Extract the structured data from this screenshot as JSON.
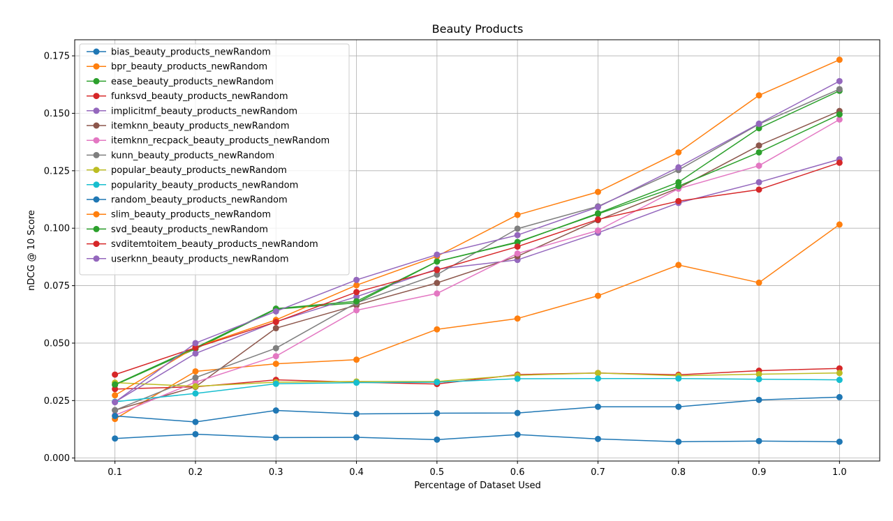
{
  "chart_data": {
    "type": "line",
    "title": "Beauty Products",
    "xlabel": "Percentage of Dataset Used",
    "ylabel": "nDCG @ 10 Score",
    "xlim": [
      0.05,
      1.05
    ],
    "ylim": [
      -0.0013,
      0.182
    ],
    "xticks": [
      0.1,
      0.2,
      0.3,
      0.4,
      0.5,
      0.6,
      0.7,
      0.8,
      0.9,
      1.0
    ],
    "xtick_labels": [
      "0.1",
      "0.2",
      "0.3",
      "0.4",
      "0.5",
      "0.6",
      "0.7",
      "0.8",
      "0.9",
      "1.0"
    ],
    "yticks": [
      0.0,
      0.025,
      0.05,
      0.075,
      0.1,
      0.125,
      0.15,
      0.175
    ],
    "ytick_labels": [
      "0.000",
      "0.025",
      "0.050",
      "0.075",
      "0.100",
      "0.125",
      "0.150",
      "0.175"
    ],
    "grid": true,
    "legend_position": "top-left",
    "x": [
      0.1,
      0.2,
      0.3,
      0.4,
      0.5,
      0.6,
      0.7,
      0.8,
      0.9,
      1.0
    ],
    "series": [
      {
        "name": "bias_beauty_products_newRandom",
        "color": "#1f77b4",
        "values": [
          0.0085,
          0.0104,
          0.0089,
          0.009,
          0.008,
          0.0102,
          0.0083,
          0.0071,
          0.0074,
          0.0071
        ]
      },
      {
        "name": "bpr_beauty_products_newRandom",
        "color": "#ff7f0e",
        "values": [
          0.017,
          0.0377,
          0.041,
          0.0428,
          0.056,
          0.0607,
          0.0706,
          0.084,
          0.0763,
          0.1016
        ]
      },
      {
        "name": "ease_beauty_products_newRandom",
        "color": "#2ca02c",
        "values": [
          0.0318,
          0.0475,
          0.0648,
          0.0675,
          0.0855,
          0.0938,
          0.1065,
          0.12,
          0.1435,
          0.1598
        ]
      },
      {
        "name": "funksvd_beauty_products_newRandom",
        "color": "#d62728",
        "values": [
          0.03,
          0.031,
          0.034,
          0.033,
          0.0322,
          0.0363,
          0.037,
          0.0362,
          0.038,
          0.039
        ]
      },
      {
        "name": "implicitmf_beauty_products_newRandom",
        "color": "#9467bd",
        "values": [
          0.0244,
          0.0455,
          0.0593,
          0.0702,
          0.0822,
          0.0862,
          0.098,
          0.111,
          0.12,
          0.13
        ]
      },
      {
        "name": "itemknn_beauty_products_newRandom",
        "color": "#8c564b",
        "values": [
          0.0208,
          0.031,
          0.0565,
          0.0665,
          0.0762,
          0.0878,
          0.1035,
          0.1175,
          0.136,
          0.151
        ]
      },
      {
        "name": "itemknn_recpack_beauty_products_newRandom",
        "color": "#e377c2",
        "values": [
          0.0186,
          0.033,
          0.0443,
          0.0643,
          0.0716,
          0.089,
          0.099,
          0.1172,
          0.1272,
          0.1473
        ]
      },
      {
        "name": "kunn_beauty_products_newRandom",
        "color": "#7f7f7f",
        "values": [
          0.0208,
          0.035,
          0.0478,
          0.0675,
          0.0798,
          0.0998,
          0.1095,
          0.1253,
          0.1453,
          0.1605
        ]
      },
      {
        "name": "popular_beauty_products_newRandom",
        "color": "#bcbd22",
        "values": [
          0.0328,
          0.0312,
          0.033,
          0.0333,
          0.0333,
          0.036,
          0.037,
          0.0358,
          0.0365,
          0.037
        ]
      },
      {
        "name": "popularity_beauty_products_newRandom",
        "color": "#17becf",
        "values": [
          0.0245,
          0.0281,
          0.0323,
          0.0328,
          0.033,
          0.0345,
          0.0346,
          0.0346,
          0.0343,
          0.034
        ]
      },
      {
        "name": "random_beauty_products_newRandom",
        "color": "#1f77b4",
        "values": [
          0.0183,
          0.0157,
          0.0207,
          0.0192,
          0.0195,
          0.0196,
          0.0223,
          0.0223,
          0.0253,
          0.0265
        ]
      },
      {
        "name": "slim_beauty_products_newRandom",
        "color": "#ff7f0e",
        "values": [
          0.0273,
          0.0482,
          0.0601,
          0.0752,
          0.0878,
          0.1058,
          0.1158,
          0.133,
          0.1578,
          0.1733
        ]
      },
      {
        "name": "svd_beauty_products_newRandom",
        "color": "#2ca02c",
        "values": [
          0.032,
          0.048,
          0.065,
          0.0682,
          0.0855,
          0.094,
          0.1062,
          0.1183,
          0.133,
          0.1495
        ]
      },
      {
        "name": "svditemtoitem_beauty_products_newRandom",
        "color": "#d62728",
        "values": [
          0.0363,
          0.048,
          0.0592,
          0.0722,
          0.0818,
          0.092,
          0.1038,
          0.1118,
          0.1168,
          0.1285
        ]
      },
      {
        "name": "userknn_beauty_products_newRandom",
        "color": "#9467bd",
        "values": [
          0.0243,
          0.05,
          0.0638,
          0.0775,
          0.0885,
          0.097,
          0.1092,
          0.1265,
          0.1455,
          0.164
        ]
      }
    ]
  }
}
